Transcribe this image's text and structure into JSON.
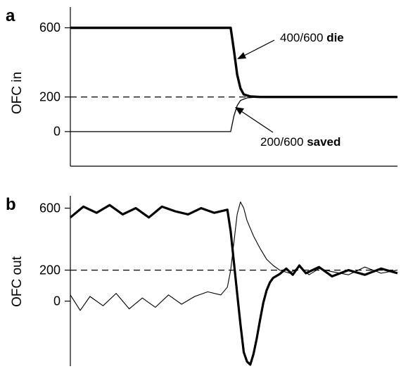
{
  "chart_data": [
    {
      "type": "line",
      "panel_label": "a",
      "ylabel": "OFC in",
      "xlabel": "",
      "ylim": [
        -200,
        720
      ],
      "yticks": [
        600,
        200,
        0
      ],
      "ytick_labels": [
        "600",
        "200",
        "0"
      ],
      "reference_line": {
        "y": 200,
        "style": "dashed"
      },
      "series": [
        {
          "style": "thick",
          "x": [
            0,
            0.49,
            0.5,
            0.51,
            0.52,
            0.53,
            0.55,
            0.58,
            1.0
          ],
          "y": [
            600,
            600,
            470,
            330,
            250,
            215,
            203,
            200,
            200
          ]
        },
        {
          "style": "thin",
          "x": [
            0,
            0.49,
            0.5,
            0.51,
            0.52,
            0.54,
            0.57,
            0.6,
            1.0
          ],
          "y": [
            0,
            0,
            90,
            150,
            180,
            195,
            199,
            200,
            200
          ]
        }
      ],
      "annotations": [
        {
          "text": "400/600 ",
          "bold_text": "die",
          "target": "thick"
        },
        {
          "text": "200/600 ",
          "bold_text": "saved",
          "target": "thin"
        }
      ]
    },
    {
      "type": "line",
      "panel_label": "b",
      "ylabel": "OFC out",
      "xlabel": "",
      "ylim": [
        -420,
        680
      ],
      "yticks": [
        600,
        200,
        0
      ],
      "ytick_labels": [
        "600",
        "200",
        "0"
      ],
      "reference_line": {
        "y": 200,
        "style": "dashed"
      },
      "series": [
        {
          "style": "thick",
          "x": [
            0,
            0.04,
            0.08,
            0.12,
            0.16,
            0.2,
            0.24,
            0.28,
            0.32,
            0.36,
            0.4,
            0.44,
            0.48,
            0.49,
            0.5,
            0.51,
            0.52,
            0.53,
            0.54,
            0.55,
            0.56,
            0.57,
            0.58,
            0.59,
            0.6,
            0.61,
            0.62,
            0.64,
            0.66,
            0.68,
            0.7,
            0.72,
            0.76,
            0.8,
            0.85,
            0.9,
            0.95,
            1.0
          ],
          "y": [
            540,
            610,
            570,
            620,
            560,
            600,
            540,
            610,
            580,
            560,
            600,
            570,
            590,
            450,
            250,
            50,
            -150,
            -330,
            -390,
            -410,
            -340,
            -240,
            -120,
            -10,
            70,
            120,
            150,
            175,
            210,
            170,
            230,
            180,
            220,
            160,
            200,
            170,
            210,
            180
          ]
        },
        {
          "style": "thin",
          "x": [
            0,
            0.03,
            0.06,
            0.1,
            0.14,
            0.18,
            0.22,
            0.26,
            0.3,
            0.34,
            0.38,
            0.42,
            0.46,
            0.48,
            0.49,
            0.5,
            0.51,
            0.52,
            0.53,
            0.54,
            0.56,
            0.58,
            0.6,
            0.62,
            0.64,
            0.67,
            0.7,
            0.73,
            0.76,
            0.8,
            0.85,
            0.9,
            0.95,
            1.0
          ],
          "y": [
            40,
            -60,
            30,
            -30,
            50,
            -50,
            20,
            -40,
            40,
            -20,
            30,
            60,
            40,
            90,
            200,
            380,
            560,
            640,
            600,
            520,
            420,
            340,
            270,
            230,
            200,
            180,
            220,
            170,
            210,
            190,
            170,
            220,
            180,
            200
          ]
        }
      ]
    }
  ]
}
